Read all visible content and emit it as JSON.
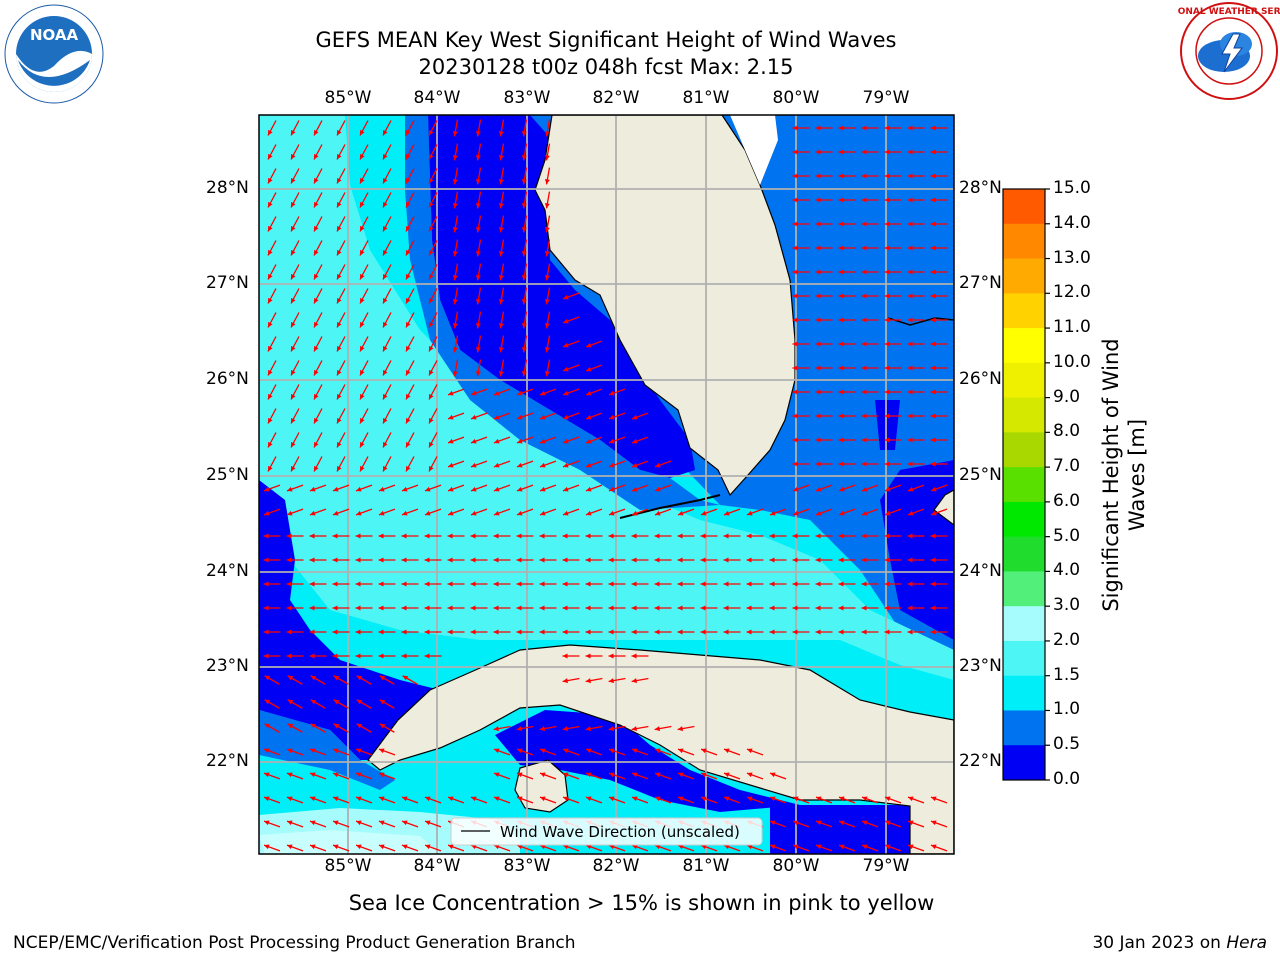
{
  "title": {
    "line1": "GEFS MEAN Key West Significant Height of Wind Waves",
    "line2": "20230128 t00z 048h fcst   Max: 2.15"
  },
  "logos": {
    "left": {
      "text": "NOAA",
      "ring_text": "NATIONAL OCEANIC AND ATMOSPHERIC ADMINISTRATION · U.S. DEPARTMENT OF COMMERCE"
    },
    "right": {
      "ring_text": "NATIONAL WEATHER SERVICE"
    }
  },
  "map": {
    "lon_labels": [
      "85°W",
      "84°W",
      "83°W",
      "82°W",
      "81°W",
      "80°W",
      "79°W"
    ],
    "lat_labels": [
      "28°N",
      "27°N",
      "26°N",
      "25°N",
      "24°N",
      "23°N",
      "22°N"
    ],
    "legend_label": "Wind Wave Direction (unscaled)",
    "colors": {
      "land": "#eeecdc",
      "arrow": "#ff0000",
      "grid": "#b0b0b0"
    }
  },
  "colorbar": {
    "label_line1": "Significant Height of Wind",
    "label_line2": "Waves [m]",
    "ticks": [
      "15.0",
      "14.0",
      "13.0",
      "12.0",
      "11.0",
      "10.0",
      "9.0",
      "8.0",
      "7.0",
      "6.0",
      "5.0",
      "4.0",
      "3.0",
      "2.0",
      "1.5",
      "1.0",
      "0.5",
      "0.0"
    ],
    "colors_bottom_to_top": [
      "#0000f5",
      "#0073f0",
      "#00eef8",
      "#4ef5f5",
      "#a6fcfc",
      "#52f07a",
      "#20dc2c",
      "#00e800",
      "#5ae000",
      "#a8d800",
      "#d4e800",
      "#eef000",
      "#ffff00",
      "#ffd200",
      "#ffaa00",
      "#ff8800",
      "#ff5a00",
      "#ff2800",
      "#ff0000"
    ]
  },
  "caption": "Sea Ice Concentration > 15% is shown in pink to yellow",
  "footer": {
    "left": "NCEP/EMC/Verification Post Processing Product Generation Branch",
    "right_date": "30 Jan 2023 on ",
    "right_host": "Hera"
  }
}
